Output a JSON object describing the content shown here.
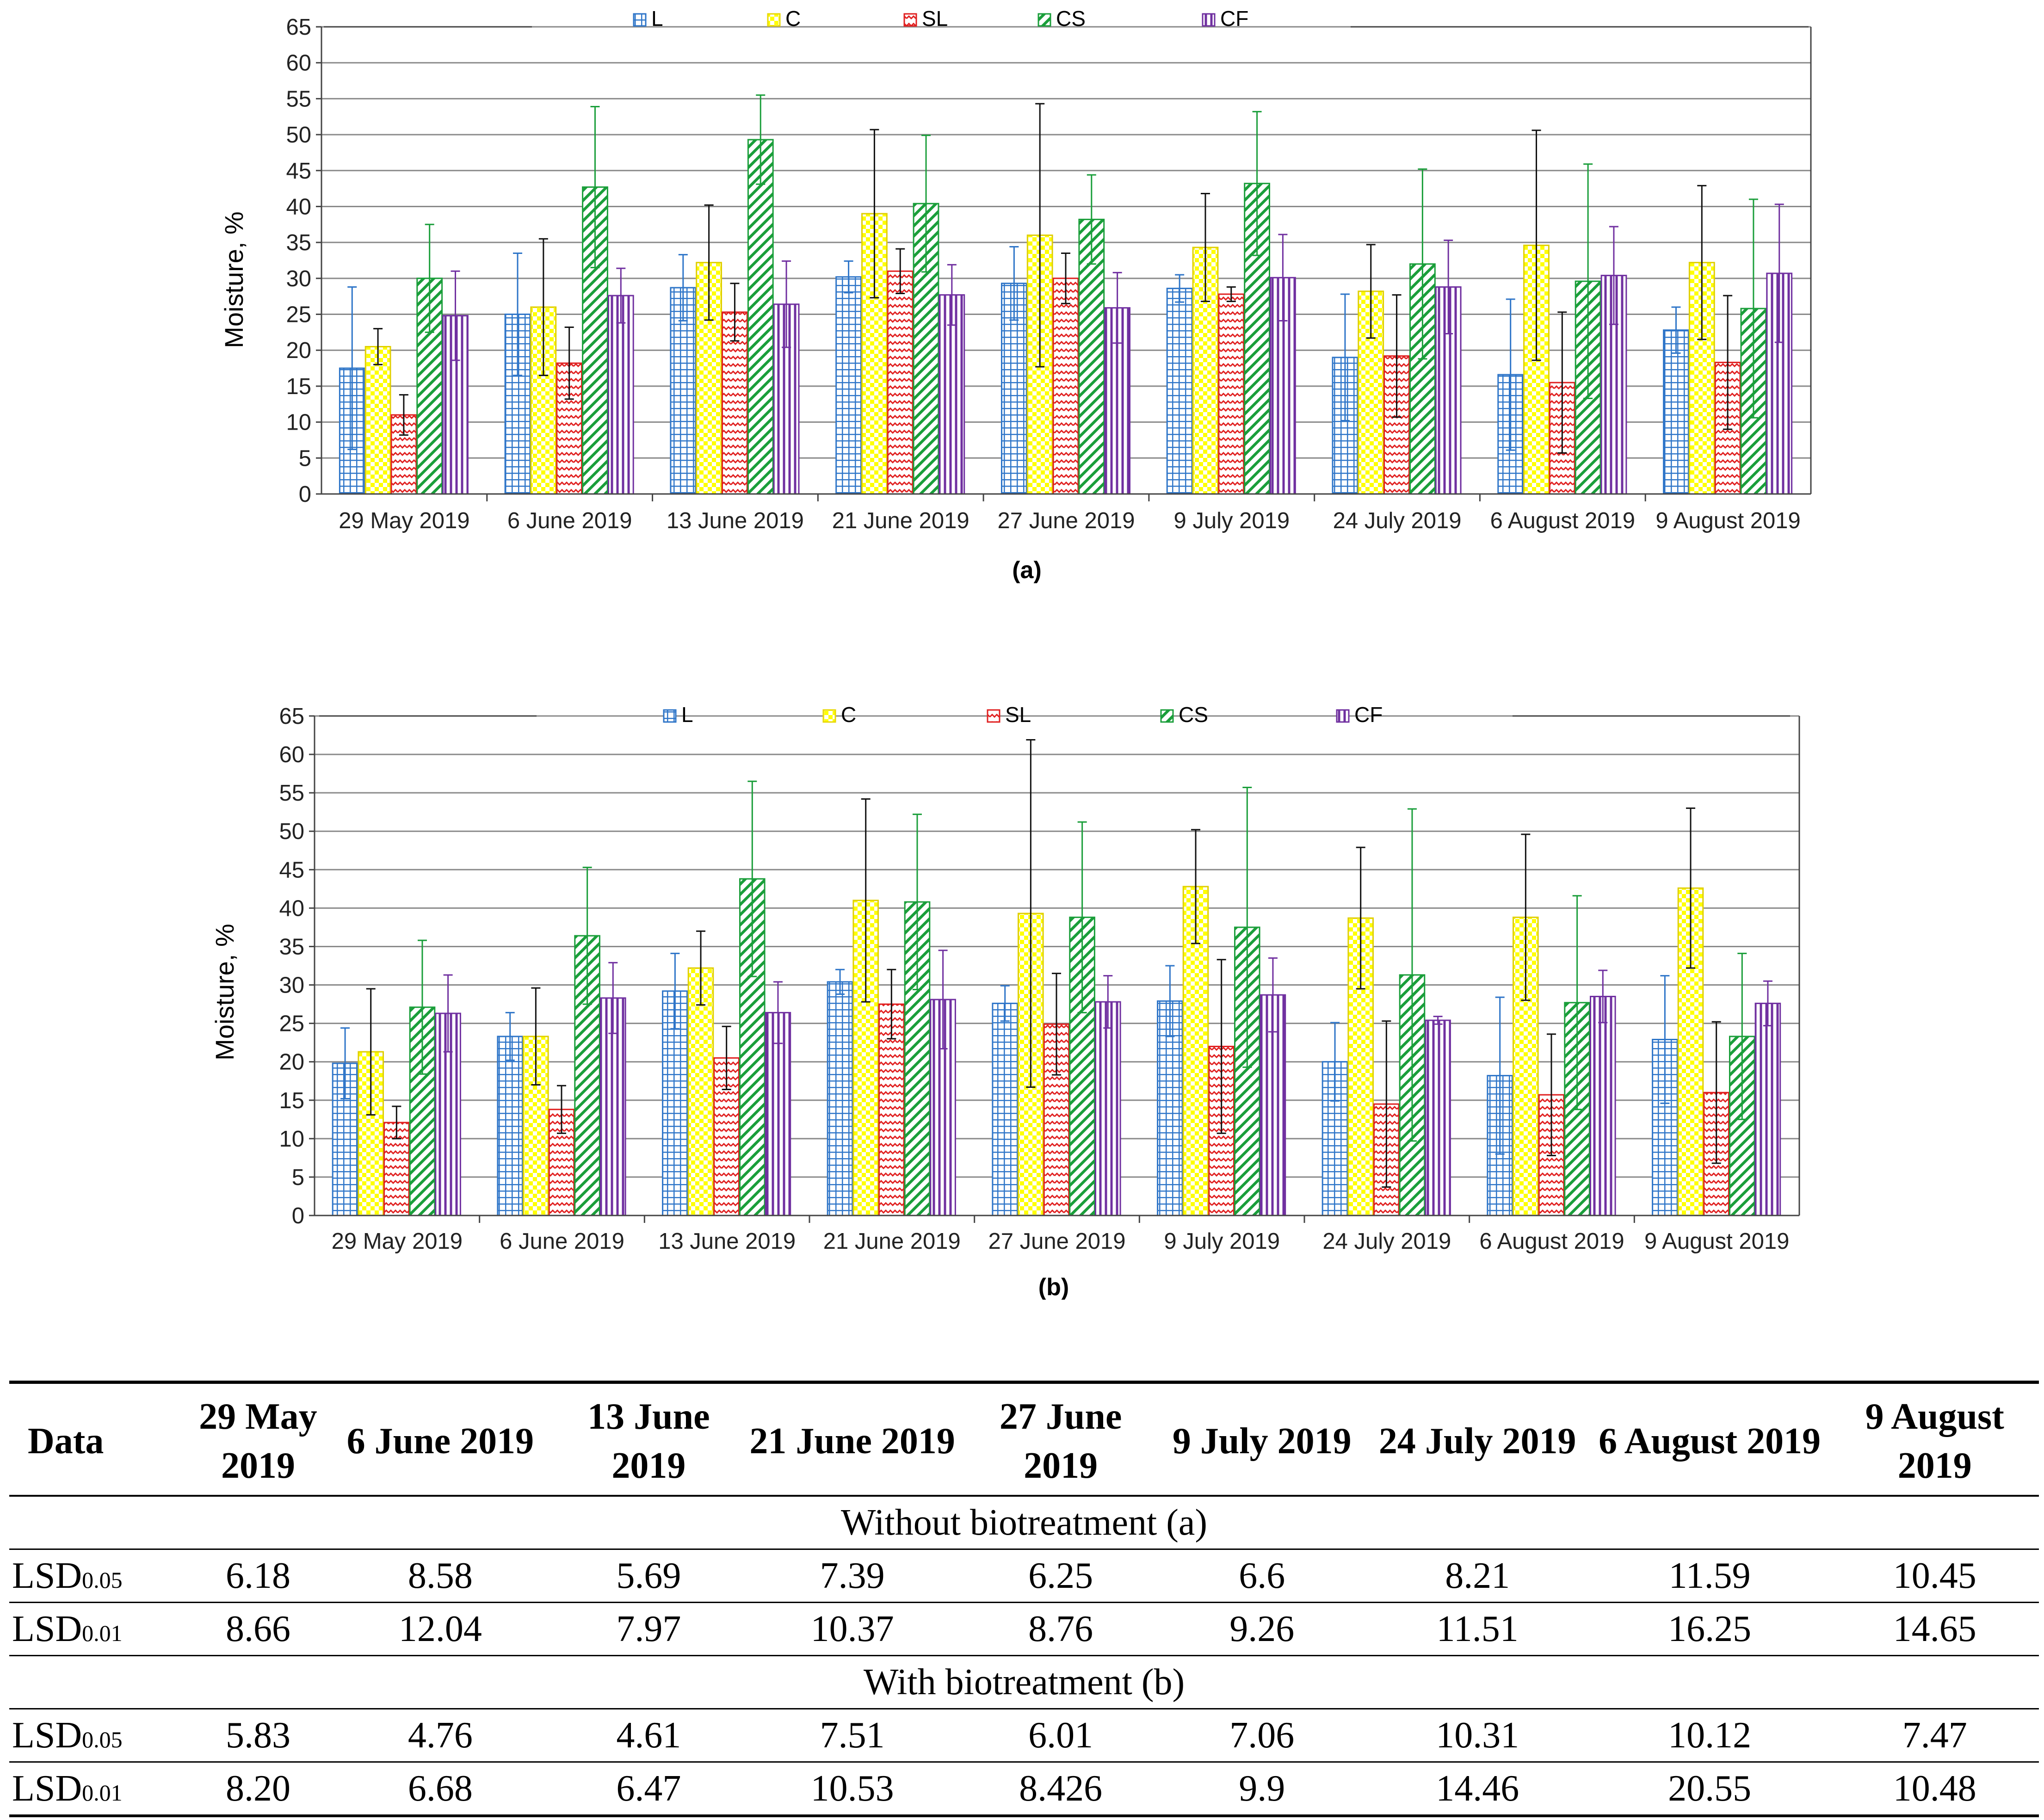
{
  "colors": {
    "L": "#2e75c8",
    "C": "#ffff00",
    "SL": "#e02020",
    "CS": "#1a9e3a",
    "CF": "#7030a0",
    "grid": "#8a8a8a",
    "axis": "#444444"
  },
  "chart_data": [
    {
      "type": "bar",
      "caption": "(a)",
      "ylabel": "Moisture, %",
      "ylim": [
        0,
        65
      ],
      "yticks": [
        "0",
        "5",
        "10",
        "15",
        "20",
        "25",
        "30",
        "35",
        "40",
        "45",
        "50",
        "55",
        "60",
        "65"
      ],
      "categories": [
        "29 May 2019",
        "6 June 2019",
        "13 June 2019",
        "21 June 2019",
        "27 June 2019",
        "9 July 2019",
        "24 July 2019",
        "6 August 2019",
        "9 August 2019"
      ],
      "legend_position": "top-center",
      "grid": true,
      "series": [
        {
          "name": "L",
          "values": [
            17.5,
            25,
            28.7,
            30.2,
            29.3,
            28.6,
            19,
            16.6,
            22.8
          ],
          "errors": [
            11.3,
            8.5,
            4.6,
            2.2,
            5.1,
            1.9,
            8.8,
            10.5,
            3.2
          ]
        },
        {
          "name": "C",
          "values": [
            20.5,
            26,
            32.2,
            39,
            36,
            34.3,
            28.2,
            34.6,
            32.2
          ],
          "errors": [
            2.5,
            9.5,
            8,
            11.7,
            18.3,
            7.5,
            6.5,
            16,
            10.7
          ]
        },
        {
          "name": "SL",
          "values": [
            11,
            18.2,
            25.3,
            31,
            30,
            27.8,
            19.2,
            15.5,
            18.3
          ],
          "errors": [
            2.8,
            5,
            4,
            3.1,
            3.5,
            1,
            8.5,
            9.8,
            9.3
          ]
        },
        {
          "name": "CS",
          "values": [
            30,
            42.7,
            49.3,
            40.4,
            38.2,
            43.2,
            32,
            29.6,
            25.8
          ],
          "errors": [
            7.5,
            11.2,
            6.2,
            9.5,
            6.2,
            10,
            13.2,
            16.3,
            15.2
          ]
        },
        {
          "name": "CF",
          "values": [
            24.8,
            27.6,
            26.4,
            27.7,
            25.9,
            30.1,
            28.8,
            30.4,
            30.7
          ],
          "errors": [
            6.2,
            3.8,
            6,
            4.2,
            4.9,
            6,
            6.5,
            6.8,
            9.6
          ]
        }
      ]
    },
    {
      "type": "bar",
      "caption": "(b)",
      "ylabel": "Moisture,  %",
      "ylim": [
        0,
        65
      ],
      "yticks": [
        "0",
        "5",
        "10",
        "15",
        "20",
        "25",
        "30",
        "35",
        "40",
        "45",
        "50",
        "55",
        "60",
        "65"
      ],
      "categories": [
        "29 May 2019",
        "6 June 2019",
        "13 June 2019",
        "21 June 2019",
        "27 June 2019",
        "9 July 2019",
        "24 July 2019",
        "6 August 2019",
        "9 August 2019"
      ],
      "legend_position": "top-center",
      "grid": true,
      "series": [
        {
          "name": "L",
          "values": [
            19.8,
            23.3,
            29.2,
            30.4,
            27.6,
            27.9,
            20,
            18.2,
            22.9
          ],
          "errors": [
            4.6,
            3.1,
            4.9,
            1.6,
            2.3,
            4.6,
            5.1,
            10.2,
            8.3
          ]
        },
        {
          "name": "C",
          "values": [
            21.3,
            23.3,
            32.2,
            41,
            39.3,
            42.8,
            38.7,
            38.8,
            42.6
          ],
          "errors": [
            8.2,
            6.3,
            4.8,
            13.2,
            22.6,
            7.4,
            9.2,
            10.8,
            10.4
          ]
        },
        {
          "name": "SL",
          "values": [
            12.1,
            13.8,
            20.5,
            27.5,
            24.9,
            22,
            14.5,
            15.7,
            16
          ],
          "errors": [
            2.1,
            3.1,
            4.1,
            4.5,
            6.6,
            11.3,
            10.8,
            7.9,
            9.2
          ]
        },
        {
          "name": "CS",
          "values": [
            27.1,
            36.4,
            43.8,
            40.8,
            38.8,
            37.5,
            31.3,
            27.7,
            23.3
          ],
          "errors": [
            8.7,
            8.9,
            12.7,
            11.4,
            12.4,
            18.2,
            21.6,
            13.9,
            10.8
          ]
        },
        {
          "name": "CF",
          "values": [
            26.3,
            28.3,
            26.4,
            28.1,
            27.8,
            28.7,
            25.4,
            28.5,
            27.6
          ],
          "errors": [
            5,
            4.6,
            4,
            6.4,
            3.4,
            4.8,
            0.5,
            3.4,
            2.9
          ]
        }
      ]
    }
  ],
  "table": {
    "header": [
      "Data",
      "29 May 2019",
      "6 June 2019",
      "13 June 2019",
      "21 June 2019",
      "27 June 2019",
      "9 July 2019",
      "24 July 2019",
      "6 August 2019",
      "9 August 2019"
    ],
    "section_a": "Without biotreatment (a)",
    "section_b": "With biotreatment (b)",
    "lsd05_label": "LSD",
    "lsd05_sub": "0.05",
    "lsd01_label": "LSD",
    "lsd01_sub": "0.01",
    "a_lsd05": [
      "6.18",
      "8.58",
      "5.69",
      "7.39",
      "6.25",
      "6.6",
      "8.21",
      "11.59",
      "10.45"
    ],
    "a_lsd01": [
      "8.66",
      "12.04",
      "7.97",
      "10.37",
      "8.76",
      "9.26",
      "11.51",
      "16.25",
      "14.65"
    ],
    "b_lsd05": [
      "5.83",
      "4.76",
      "4.61",
      "7.51",
      "6.01",
      "7.06",
      "10.31",
      "10.12",
      "7.47"
    ],
    "b_lsd01": [
      "8.20",
      "6.68",
      "6.47",
      "10.53",
      "8.426",
      "9.9",
      "14.46",
      "20.55",
      "10.48"
    ]
  }
}
